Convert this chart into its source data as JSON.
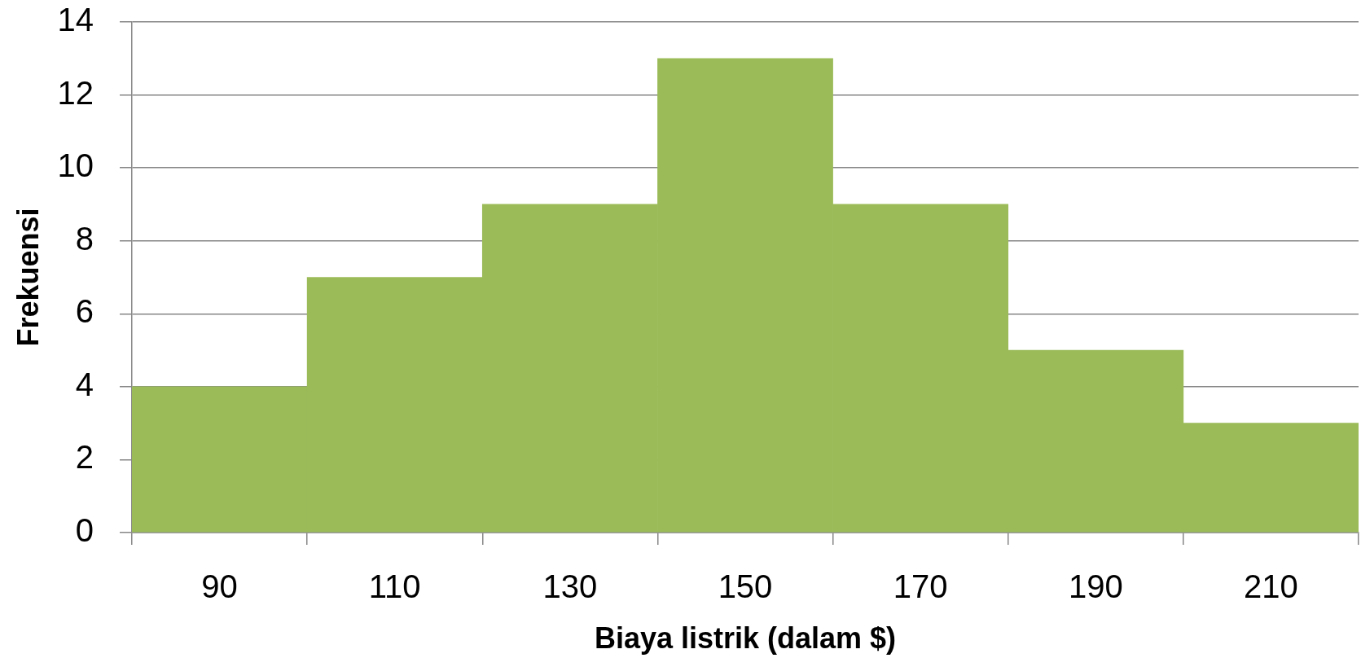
{
  "chart_data": {
    "type": "bar",
    "xlabel": "Biaya listrik (dalam $)",
    "ylabel": "Frekuensi",
    "categories": [
      "90",
      "110",
      "130",
      "150",
      "170",
      "190",
      "210"
    ],
    "values": [
      4,
      7,
      9,
      13,
      9,
      5,
      3
    ],
    "color": "#9bbb59",
    "ylim": [
      0,
      14
    ],
    "yticks": [
      0,
      2,
      4,
      6,
      8,
      10,
      12,
      14
    ],
    "grid": "y"
  }
}
